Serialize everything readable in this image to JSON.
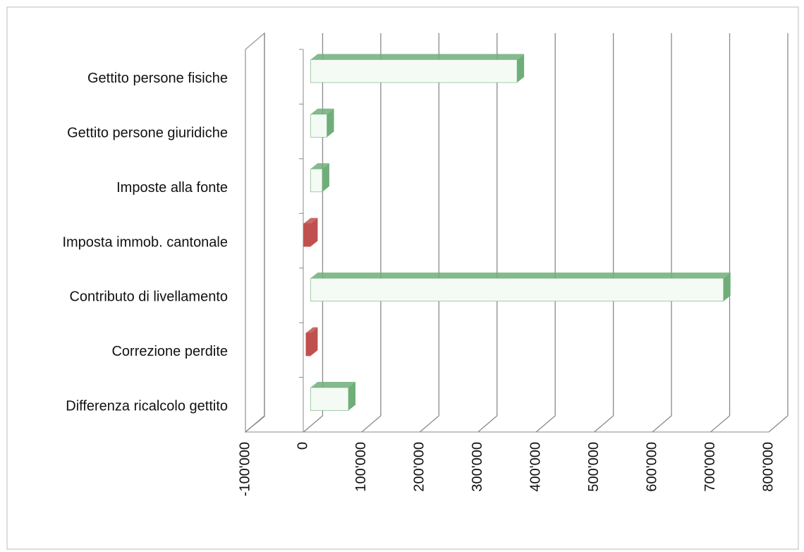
{
  "chart_data": {
    "type": "bar3d-horizontal",
    "categories": [
      "Gettito persone fisiche",
      "Gettito persone giuridiche",
      "Imposte alla fonte",
      "Imposta immob. cantonale",
      "Contributo di livellamento",
      "Correzione perdite",
      "Differenza ricalcolo gettito"
    ],
    "values": [
      355000,
      28000,
      20000,
      -12000,
      710000,
      -8000,
      65000
    ],
    "positive_color": "#6fae79",
    "negative_color": "#c0504d",
    "xlim": [
      -100000,
      800000
    ],
    "xticks": [
      {
        "value": -100000,
        "label": "-100'000"
      },
      0,
      {
        "value": 100000,
        "label": "100'000"
      },
      {
        "value": 200000,
        "label": "200'000"
      },
      {
        "value": 300000,
        "label": "300'000"
      },
      {
        "value": 400000,
        "label": "400'000"
      },
      {
        "value": 500000,
        "label": "500'000"
      },
      {
        "value": 600000,
        "label": "600'000"
      },
      {
        "value": 700000,
        "label": "700'000"
      },
      {
        "value": 800000,
        "label": "800'000"
      }
    ],
    "grid": true
  }
}
